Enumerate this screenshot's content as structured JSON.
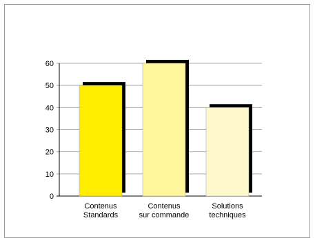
{
  "chart_data": {
    "type": "bar",
    "categories": [
      [
        "Contenus",
        "Standards"
      ],
      [
        "Contenus",
        "sur commande"
      ],
      [
        "Solutions",
        "techniques"
      ]
    ],
    "values": [
      50,
      60,
      40
    ],
    "ylim": [
      0,
      60
    ],
    "yticks": [
      0,
      10,
      20,
      30,
      40,
      50,
      60
    ],
    "grid": true,
    "legend": "none",
    "colors": {
      "bars": [
        "#ffee00",
        "#fff59a",
        "#fff8cc"
      ],
      "shadow": "#000000",
      "grid": "#aaaaaa",
      "bar_outline": "#999999"
    }
  }
}
